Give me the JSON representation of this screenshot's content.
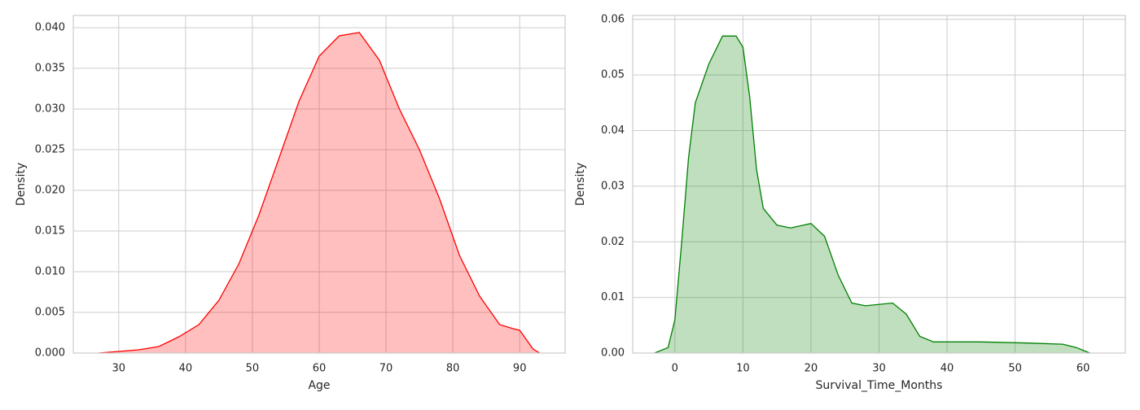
{
  "chart_data": [
    {
      "type": "area",
      "xlabel": "Age",
      "ylabel": "Density",
      "color": "#ff0000",
      "grid": true,
      "x": [
        27,
        30,
        33,
        36,
        39,
        42,
        45,
        48,
        51,
        54,
        57,
        60,
        63,
        66,
        69,
        72,
        75,
        78,
        81,
        84,
        87,
        89,
        90,
        92,
        93
      ],
      "values": [
        0,
        0.0002,
        0.0004,
        0.0008,
        0.002,
        0.0035,
        0.0065,
        0.011,
        0.017,
        0.024,
        0.031,
        0.0365,
        0.039,
        0.0394,
        0.036,
        0.03,
        0.025,
        0.019,
        0.012,
        0.007,
        0.0035,
        0.003,
        0.0028,
        0.0005,
        0
      ],
      "xlim": [
        23.2,
        96.8
      ],
      "ylim": [
        0,
        0.0415
      ],
      "xticks": [
        30,
        40,
        50,
        60,
        70,
        80,
        90
      ],
      "yticks": [
        {
          "value": 0,
          "label": "0.000"
        },
        {
          "value": 0.005,
          "label": "0.005"
        },
        {
          "value": 0.01,
          "label": "0.010"
        },
        {
          "value": 0.015,
          "label": "0.015"
        },
        {
          "value": 0.02,
          "label": "0.020"
        },
        {
          "value": 0.025,
          "label": "0.025"
        },
        {
          "value": 0.03,
          "label": "0.030"
        },
        {
          "value": 0.035,
          "label": "0.035"
        },
        {
          "value": 0.04,
          "label": "0.040"
        }
      ]
    },
    {
      "type": "area",
      "xlabel": "Survival_Time_Months",
      "ylabel": "Density",
      "color": "#008000",
      "grid": true,
      "x": [
        -3,
        -1,
        0,
        1,
        2,
        3,
        5,
        7,
        9,
        10,
        11,
        12,
        13,
        15,
        17,
        20,
        22,
        24,
        26,
        28,
        32,
        34,
        36,
        38,
        45,
        52,
        57,
        59,
        61
      ],
      "values": [
        0,
        0.001,
        0.006,
        0.02,
        0.035,
        0.045,
        0.052,
        0.057,
        0.057,
        0.055,
        0.046,
        0.033,
        0.026,
        0.023,
        0.0225,
        0.0233,
        0.021,
        0.014,
        0.009,
        0.0085,
        0.009,
        0.007,
        0.003,
        0.002,
        0.002,
        0.0018,
        0.0016,
        0.001,
        0
      ],
      "xlim": [
        -6.2,
        66.2
      ],
      "ylim": [
        0,
        0.0607
      ],
      "xticks": [
        0,
        10,
        20,
        30,
        40,
        50,
        60
      ],
      "yticks": [
        {
          "value": 0,
          "label": "0.00"
        },
        {
          "value": 0.01,
          "label": "0.01"
        },
        {
          "value": 0.02,
          "label": "0.02"
        },
        {
          "value": 0.03,
          "label": "0.03"
        },
        {
          "value": 0.04,
          "label": "0.04"
        },
        {
          "value": 0.05,
          "label": "0.05"
        },
        {
          "value": 0.06,
          "label": "0.06"
        }
      ]
    }
  ]
}
